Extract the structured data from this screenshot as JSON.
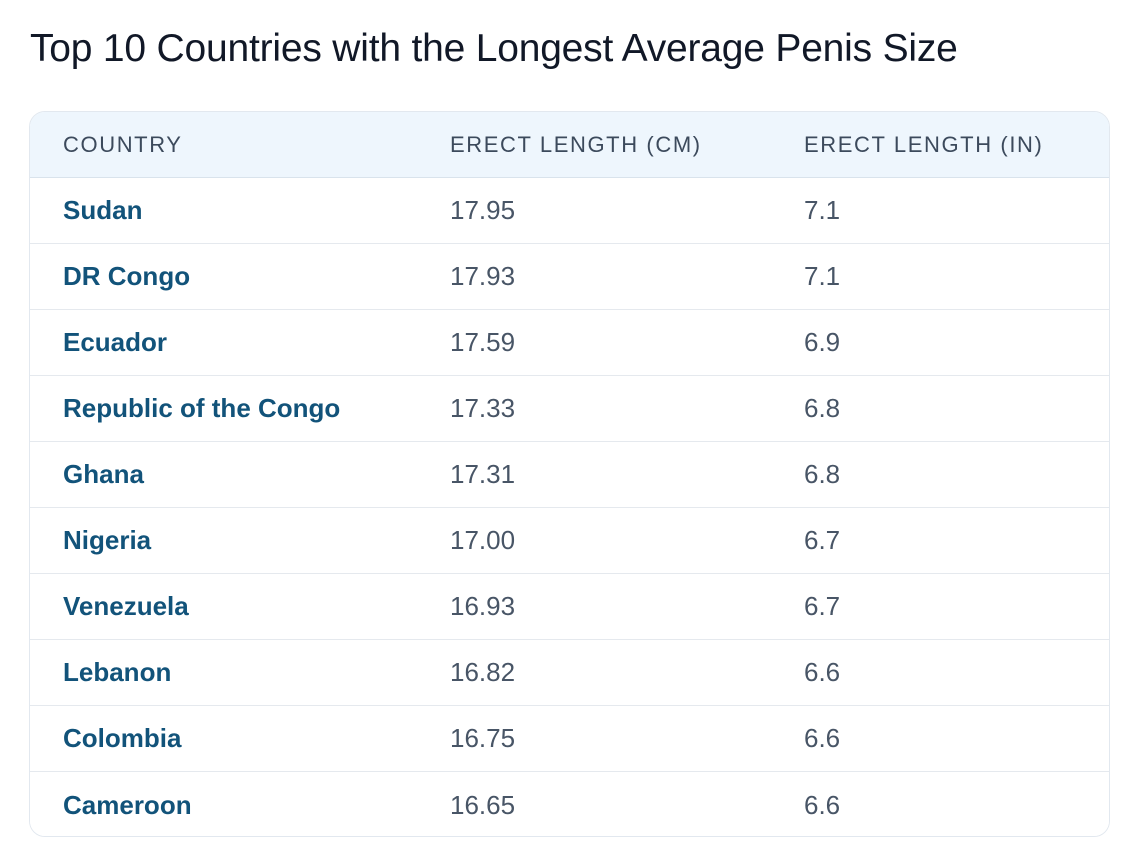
{
  "chart_data": {
    "type": "table",
    "title": "Top 10 Countries with the Longest Average Penis Size",
    "columns": [
      "COUNTRY",
      "ERECT LENGTH (CM)",
      "ERECT LENGTH (IN)"
    ],
    "rows": [
      [
        "Sudan",
        "17.95",
        "7.1"
      ],
      [
        "DR Congo",
        "17.93",
        "7.1"
      ],
      [
        "Ecuador",
        "17.59",
        "6.9"
      ],
      [
        "Republic of the Congo",
        "17.33",
        "6.8"
      ],
      [
        "Ghana",
        "17.31",
        "6.8"
      ],
      [
        "Nigeria",
        "17.00",
        "6.7"
      ],
      [
        "Venezuela",
        "16.93",
        "6.7"
      ],
      [
        "Lebanon",
        "16.82",
        "6.6"
      ],
      [
        "Colombia",
        "16.75",
        "6.6"
      ],
      [
        "Cameroon",
        "16.65",
        "6.6"
      ]
    ]
  },
  "colors": {
    "title": "#111827",
    "header_bg": "#eef6fd",
    "header_text": "#3c4a5c",
    "country_text": "#12537a",
    "number_text": "#485566",
    "border": "#e2e8ef"
  }
}
